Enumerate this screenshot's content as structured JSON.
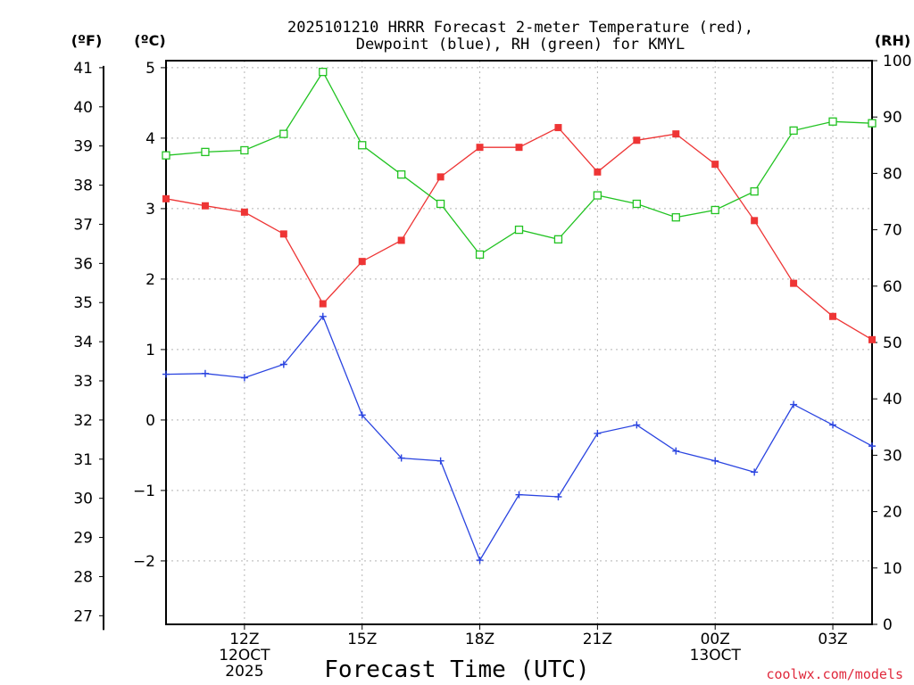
{
  "chart_data": {
    "type": "line",
    "title": [
      "2025101210 HRRR Forecast 2-meter Temperature (red),",
      "Dewpoint (blue), RH (green) for KMYL"
    ],
    "xlabel": "Forecast Time (UTC)",
    "credit": "coolwx.com/models",
    "units": {
      "fahrenheit": "(ºF)",
      "celsius": "(ºC)",
      "rh": "(RH)"
    },
    "x": [
      10,
      11,
      12,
      13,
      14,
      15,
      16,
      17,
      18,
      19,
      20,
      21,
      22,
      23,
      24,
      25,
      26,
      27,
      28
    ],
    "xlim": [
      10,
      28
    ],
    "x_ticks": [
      {
        "x": 12,
        "lines": [
          "12Z",
          "12OCT",
          "2025"
        ]
      },
      {
        "x": 15,
        "lines": [
          "15Z"
        ]
      },
      {
        "x": 18,
        "lines": [
          "18Z"
        ]
      },
      {
        "x": 21,
        "lines": [
          "21Z"
        ]
      },
      {
        "x": 24,
        "lines": [
          "00Z",
          "13OCT"
        ]
      },
      {
        "x": 27,
        "lines": [
          "03Z"
        ]
      }
    ],
    "y_celsius": {
      "lim": [
        -2.9,
        5.1
      ],
      "ticks": [
        5,
        4,
        3,
        2,
        1,
        0,
        -1,
        -2
      ],
      "tick_labels": [
        "5",
        "4",
        "3",
        "2",
        "1",
        "0",
        "−1",
        "−2"
      ]
    },
    "y_fahrenheit": {
      "ticks": [
        41,
        40,
        39,
        38,
        37,
        36,
        35,
        34,
        33,
        32,
        31,
        30,
        29,
        28,
        27
      ]
    },
    "y_rh": {
      "lim": [
        0,
        100
      ],
      "ticks": [
        100,
        90,
        80,
        70,
        60,
        50,
        40,
        30,
        20,
        10,
        0
      ]
    },
    "series": [
      {
        "name": "Temperature",
        "color": "#ee3535",
        "marker": "filled-square",
        "axis": "celsius",
        "values": [
          3.14,
          3.04,
          2.95,
          2.64,
          1.65,
          2.25,
          2.55,
          3.45,
          3.87,
          3.87,
          4.15,
          3.52,
          3.97,
          4.06,
          3.63,
          2.83,
          1.94,
          1.47,
          1.14
        ]
      },
      {
        "name": "Dewpoint",
        "color": "#2a44e0",
        "marker": "plus",
        "axis": "celsius",
        "values": [
          0.65,
          0.66,
          0.6,
          0.79,
          1.47,
          0.07,
          -0.54,
          -0.58,
          -1.99,
          -1.06,
          -1.09,
          -0.19,
          -0.07,
          -0.44,
          -0.58,
          -0.74,
          0.22,
          -0.07,
          -0.37
        ]
      },
      {
        "name": "RH",
        "color": "#22c322",
        "marker": "open-square",
        "axis": "rh",
        "values": [
          83.2,
          83.8,
          84.1,
          87.0,
          98.0,
          85.0,
          79.8,
          74.6,
          65.6,
          70.0,
          68.3,
          76.1,
          74.6,
          72.2,
          73.5,
          76.8,
          87.6,
          89.2,
          88.9
        ]
      }
    ]
  }
}
